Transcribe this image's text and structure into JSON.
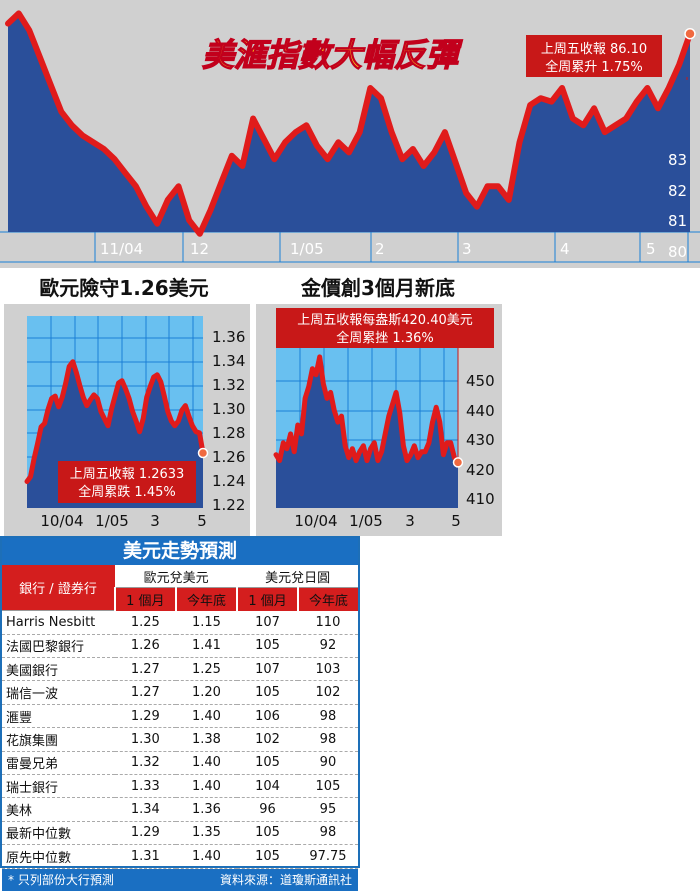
{
  "headline": "美滙指數大幅反彈",
  "chart_data": [
    {
      "type": "area",
      "subject": "美滙指數",
      "title": "美滙指數大幅反彈",
      "annotation": [
        "上周五收報 86.10",
        "全周累升 1.75%"
      ],
      "x_ticks": [
        "11/04",
        "12",
        "1/05",
        "2",
        "3",
        "4",
        "5"
      ],
      "y_ticks": [
        "83",
        "82",
        "81",
        "80"
      ],
      "ylim": [
        79.9,
        86.8
      ],
      "values": [
        86.4,
        86.7,
        86.2,
        85.4,
        84.6,
        83.8,
        83.4,
        83.1,
        82.9,
        82.7,
        82.4,
        82.0,
        81.6,
        81.0,
        80.5,
        81.2,
        81.6,
        80.6,
        80.2,
        80.9,
        81.7,
        82.5,
        82.2,
        83.6,
        83.0,
        82.4,
        82.9,
        83.2,
        83.4,
        82.8,
        82.4,
        82.9,
        82.6,
        83.2,
        84.5,
        84.2,
        83.2,
        82.4,
        82.7,
        82.2,
        82.6,
        83.2,
        82.3,
        81.4,
        81.0,
        81.6,
        81.6,
        81.2,
        82.9,
        84.0,
        84.2,
        84.1,
        84.5,
        83.6,
        83.4,
        83.9,
        83.2,
        83.4,
        83.6,
        84.1,
        84.5,
        83.9,
        84.5,
        85.2,
        86.1
      ]
    },
    {
      "type": "area",
      "subject": "歐元",
      "title": "歐元險守1.26美元",
      "annotation": [
        "上周五收報 1.2633",
        "全周累跌 1.45%"
      ],
      "x_ticks": [
        "10/04",
        "1/05",
        "3",
        "5"
      ],
      "y_ticks": [
        "1.36",
        "1.34",
        "1.32",
        "1.30",
        "1.28",
        "1.26",
        "1.24",
        "1.22"
      ],
      "ylim": [
        1.22,
        1.36
      ],
      "values": [
        1.239,
        1.243,
        1.258,
        1.271,
        1.285,
        1.288,
        1.3,
        1.309,
        1.311,
        1.302,
        1.31,
        1.322,
        1.336,
        1.34,
        1.331,
        1.32,
        1.31,
        1.303,
        1.308,
        1.312,
        1.309,
        1.298,
        1.292,
        1.286,
        1.3,
        1.311,
        1.322,
        1.324,
        1.317,
        1.309,
        1.298,
        1.29,
        1.281,
        1.292,
        1.31,
        1.319,
        1.327,
        1.329,
        1.323,
        1.311,
        1.298,
        1.29,
        1.286,
        1.29,
        1.299,
        1.303,
        1.294,
        1.286,
        1.281,
        1.28,
        1.263
      ]
    },
    {
      "type": "area",
      "subject": "金價",
      "title": "金價創3個月新底",
      "annotation": [
        "上周五收報每盎斯420.40美元",
        "全周累挫 1.36%"
      ],
      "x_ticks": [
        "10/04",
        "1/05",
        "3",
        "5"
      ],
      "y_ticks": [
        "450",
        "440",
        "430",
        "420",
        "410"
      ],
      "ylim": [
        405,
        459
      ],
      "values": [
        423.0,
        421.0,
        427.0,
        425.0,
        430.0,
        424.0,
        433.0,
        430.0,
        442.0,
        446.0,
        452.0,
        450.0,
        456.0,
        447.0,
        442.0,
        444.0,
        438.0,
        434.0,
        436.0,
        426.0,
        422.0,
        425.0,
        421.0,
        424.0,
        426.0,
        421.0,
        425.0,
        427.0,
        421.0,
        424.0,
        430.0,
        436.0,
        440.0,
        444.0,
        437.0,
        426.0,
        421.0,
        423.0,
        426.0,
        422.0,
        424.0,
        424.0,
        427.0,
        434.0,
        439.0,
        434.0,
        423.0,
        427.0,
        427.0,
        422.0,
        420.4
      ]
    }
  ],
  "forecast": {
    "title": "美元走勢預測",
    "bank_header": "銀行 / 證券行",
    "group_eur": "歐元兌美元",
    "group_jpy": "美元兌日圓",
    "sub_1m": "1 個月",
    "sub_ye": "今年底",
    "rows": [
      {
        "bank": "Harris Nesbitt",
        "eur_1m": "1.25",
        "eur_ye": "1.15",
        "jpy_1m": "107",
        "jpy_ye": "110"
      },
      {
        "bank": "法國巴黎銀行",
        "eur_1m": "1.26",
        "eur_ye": "1.41",
        "jpy_1m": "105",
        "jpy_ye": "92"
      },
      {
        "bank": "美國銀行",
        "eur_1m": "1.27",
        "eur_ye": "1.25",
        "jpy_1m": "107",
        "jpy_ye": "103"
      },
      {
        "bank": "瑞信一波",
        "eur_1m": "1.27",
        "eur_ye": "1.20",
        "jpy_1m": "105",
        "jpy_ye": "102"
      },
      {
        "bank": "滙豐",
        "eur_1m": "1.29",
        "eur_ye": "1.40",
        "jpy_1m": "106",
        "jpy_ye": "98"
      },
      {
        "bank": "花旗集團",
        "eur_1m": "1.30",
        "eur_ye": "1.38",
        "jpy_1m": "102",
        "jpy_ye": "98"
      },
      {
        "bank": "雷曼兄弟",
        "eur_1m": "1.32",
        "eur_ye": "1.40",
        "jpy_1m": "105",
        "jpy_ye": "90"
      },
      {
        "bank": "瑞士銀行",
        "eur_1m": "1.33",
        "eur_ye": "1.40",
        "jpy_1m": "104",
        "jpy_ye": "105"
      },
      {
        "bank": "美林",
        "eur_1m": "1.34",
        "eur_ye": "1.36",
        "jpy_1m": "96",
        "jpy_ye": "95"
      },
      {
        "bank": "最新中位數",
        "eur_1m": "1.29",
        "eur_ye": "1.35",
        "jpy_1m": "105",
        "jpy_ye": "98"
      },
      {
        "bank": "原先中位數",
        "eur_1m": "1.31",
        "eur_ye": "1.40",
        "jpy_1m": "105",
        "jpy_ye": "97.75"
      }
    ],
    "footnote": "* 只列部份大行預測",
    "source": "資料來源：道瓊斯通訊社"
  },
  "colors": {
    "line": "#e01b1b",
    "area": "#2a4f9a",
    "grid": "#1a7fd6",
    "panel_grey": "#d0d0d0",
    "label_red": "#c81818"
  }
}
